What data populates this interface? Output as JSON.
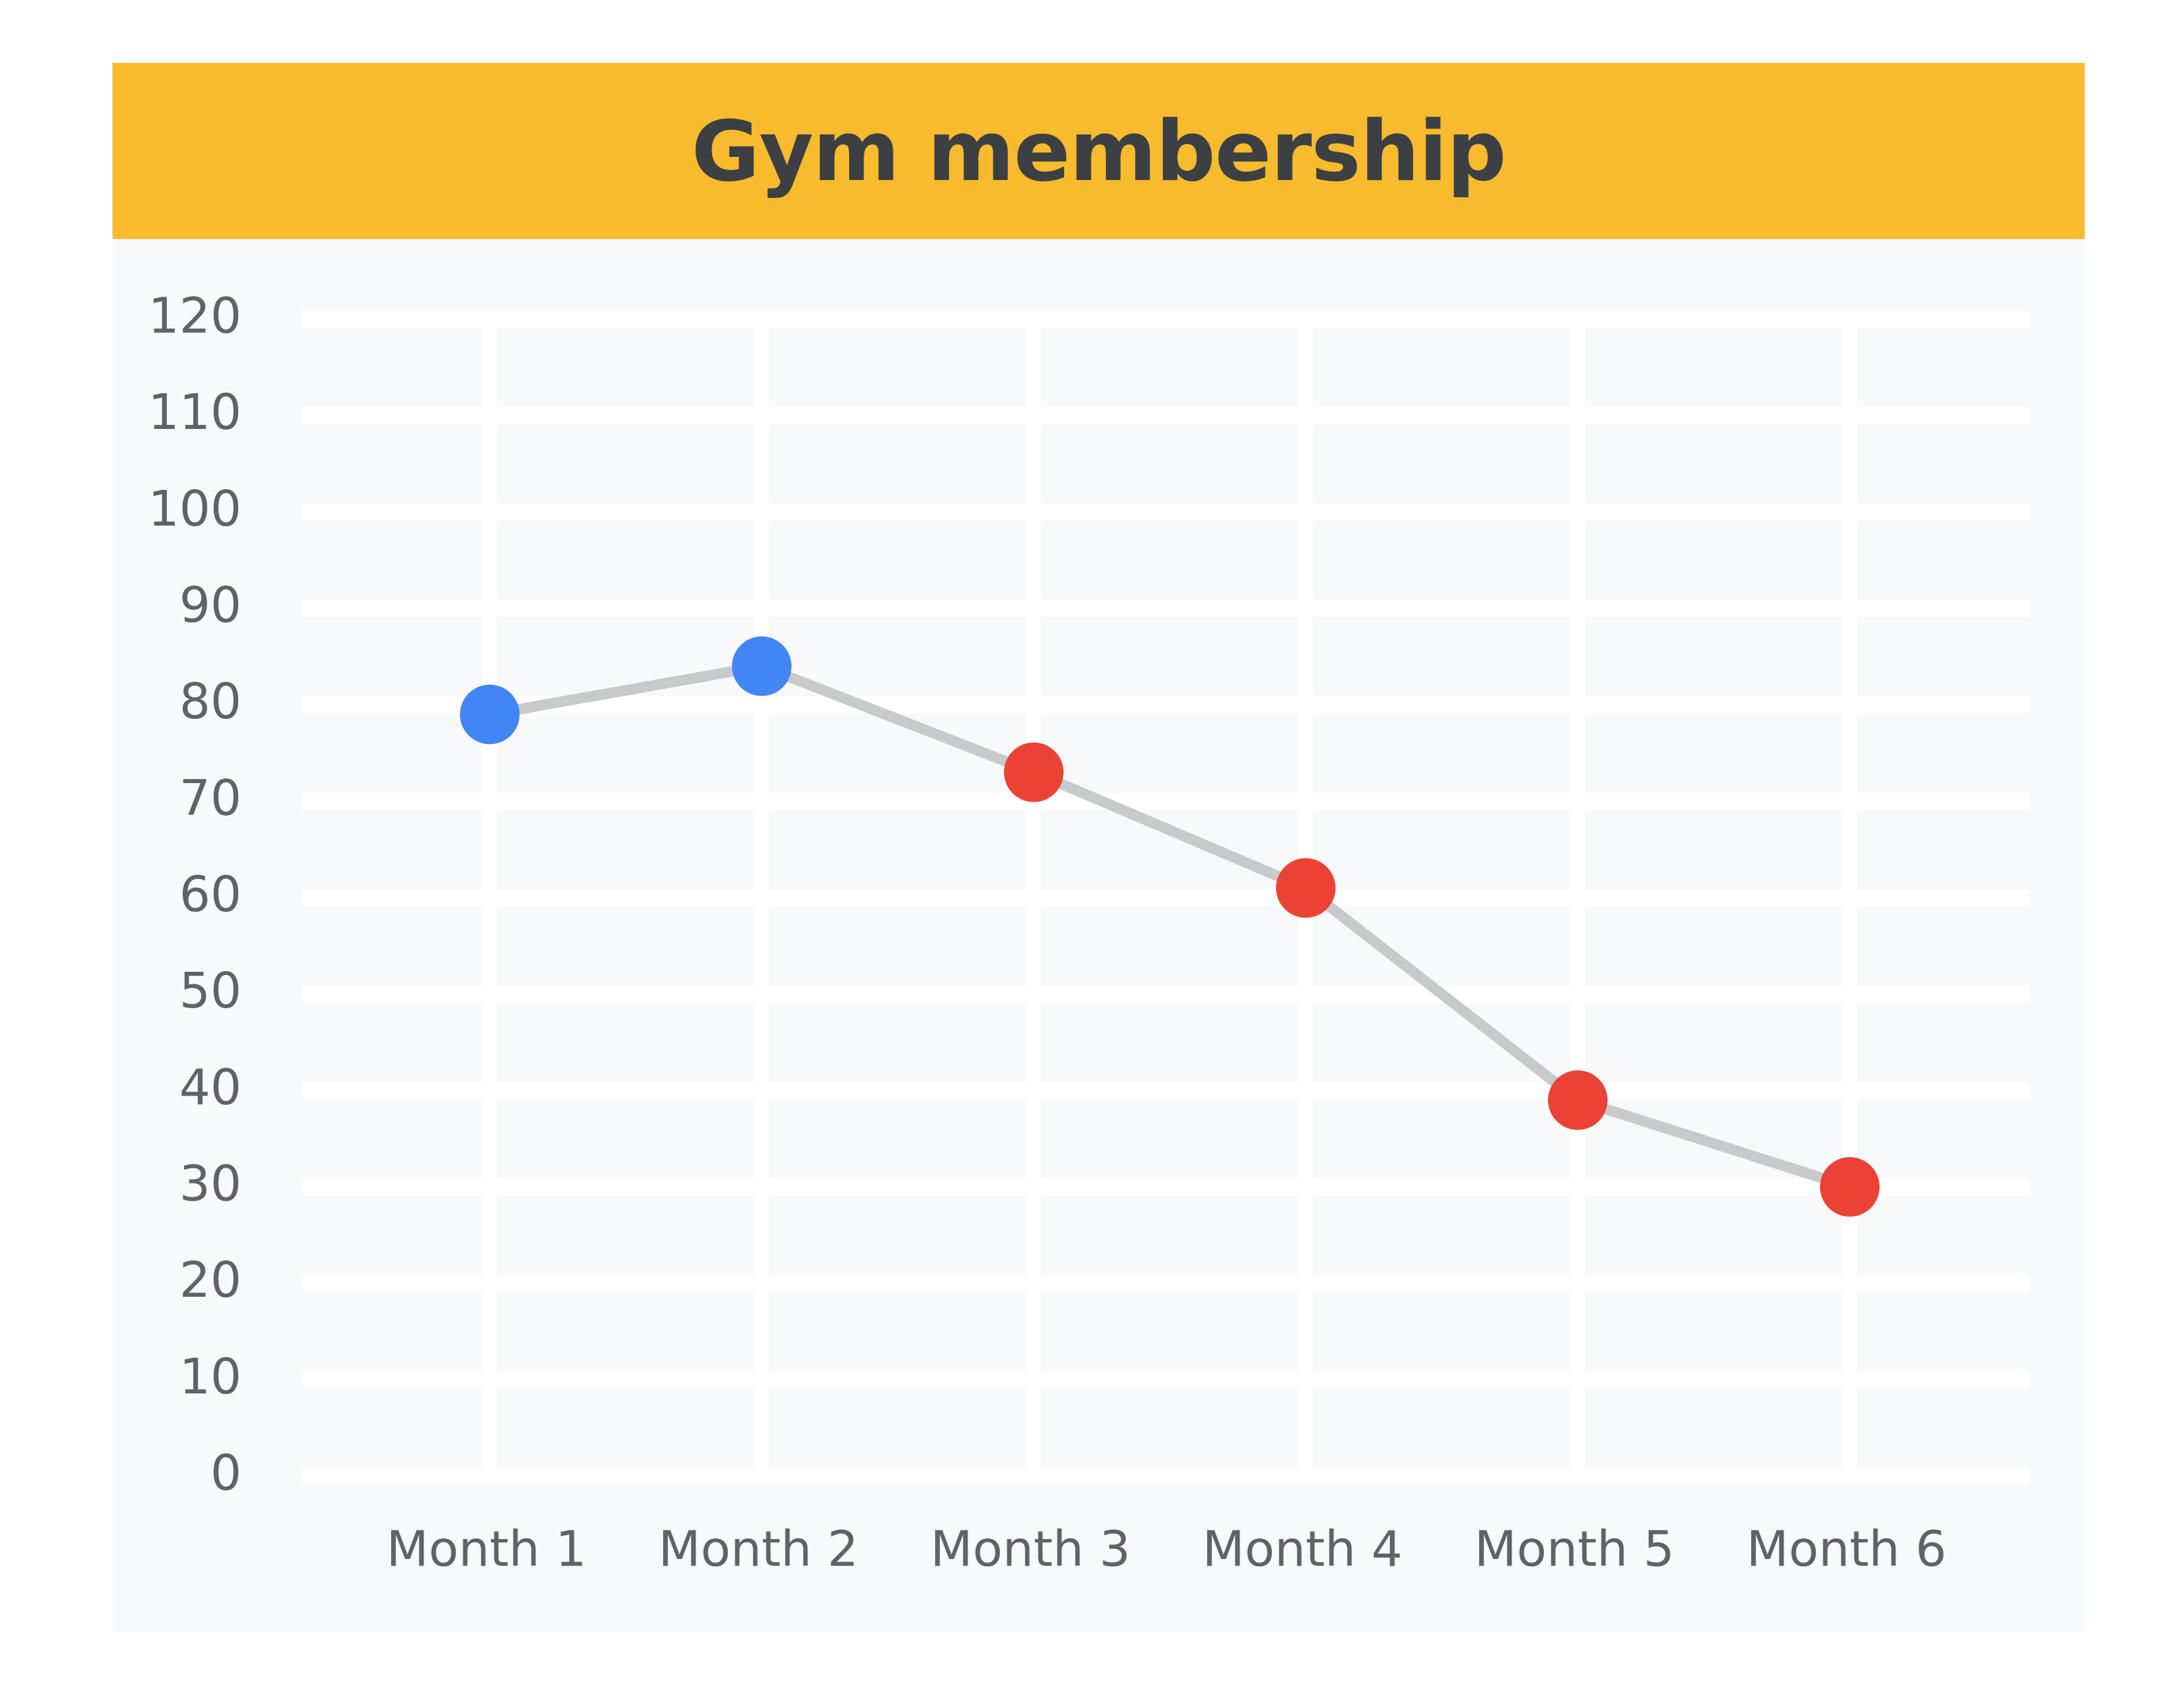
{
  "chart_data": {
    "type": "line",
    "title": "Gym membership",
    "xlabel": "",
    "ylabel": "",
    "categories": [
      "Month 1",
      "Month 2",
      "Month 3",
      "Month 4",
      "Month 5",
      "Month 6"
    ],
    "values": [
      79,
      84,
      73,
      61,
      39,
      30
    ],
    "point_colors": [
      "#4285f4",
      "#4285f4",
      "#ea4335",
      "#ea4335",
      "#ea4335",
      "#ea4335"
    ],
    "ylim": [
      0,
      120
    ],
    "yticks": [
      "0",
      "10",
      "20",
      "30",
      "40",
      "50",
      "60",
      "70",
      "80",
      "90",
      "100",
      "110",
      "120"
    ],
    "grid": true,
    "legend": "none",
    "line_color": "#c8c9cb",
    "title_bar_color": "#f9bb2e",
    "plot_background": "#f8f9fa",
    "grid_color": "#ffffff"
  }
}
